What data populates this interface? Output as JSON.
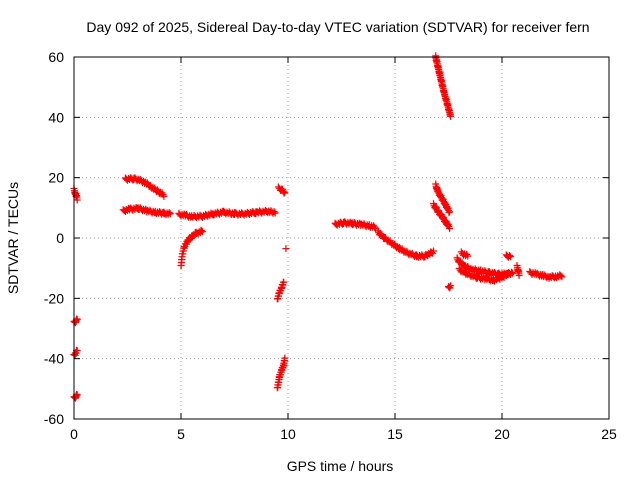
{
  "chart_data": {
    "type": "scatter",
    "title": "Day 092 of 2025, Sidereal Day-to-day VTEC variation (SDTVAR) for receiver fern",
    "xlabel": "GPS time / hours",
    "ylabel": "SDTVAR / TECUs",
    "xlim": [
      0,
      25
    ],
    "ylim": [
      -60,
      60
    ],
    "xticks": [
      0,
      5,
      10,
      15,
      20,
      25
    ],
    "yticks": [
      -60,
      -40,
      -20,
      0,
      20,
      40,
      60
    ],
    "xtick_labels": [
      "0",
      "5",
      "10",
      "15",
      "20",
      "25"
    ],
    "ytick_labels": [
      "-60",
      "-40",
      "-20",
      "0",
      "20",
      "40",
      "60"
    ],
    "grid": true,
    "marker": "+",
    "color": "#ff0000",
    "series": [
      {
        "name": "fern",
        "segments": [
          {
            "x": [
              0.0,
              0.1,
              0.15
            ],
            "y": [
              16,
              14,
              13
            ]
          },
          {
            "x": [
              0.0,
              0.1,
              0.15
            ],
            "y": [
              -28,
              -27.5,
              -27
            ]
          },
          {
            "x": [
              0.0,
              0.1,
              0.15
            ],
            "y": [
              -39,
              -38,
              -37
            ]
          },
          {
            "x": [
              0.0,
              0.1,
              0.15
            ],
            "y": [
              -53,
              -52.5,
              -52
            ]
          },
          {
            "x": [
              2.4,
              2.8,
              3.0,
              3.3,
              3.6,
              3.9,
              4.2
            ],
            "y": [
              19.5,
              19.6,
              19.3,
              18.5,
              17.0,
              15.5,
              14.2
            ]
          },
          {
            "x": [
              2.3,
              2.6,
              3.0,
              3.4,
              3.8,
              4.2,
              4.5
            ],
            "y": [
              9.0,
              9.5,
              9.8,
              9.0,
              8.5,
              8.2,
              8.0
            ]
          },
          {
            "x": [
              5.0,
              5.05,
              5.15,
              5.3,
              5.5,
              5.7,
              5.9,
              6.0
            ],
            "y": [
              -9.5,
              -6.0,
              -3.0,
              -1.0,
              0.5,
              1.5,
              2.0,
              2.5
            ]
          },
          {
            "x": [
              4.9,
              5.2,
              5.5,
              6.0,
              6.5,
              7.0,
              7.5,
              8.0,
              8.5,
              9.0,
              9.4
            ],
            "y": [
              7.8,
              7.5,
              7.0,
              7.2,
              8.0,
              8.5,
              8.0,
              8.0,
              8.5,
              8.8,
              8.5
            ]
          },
          {
            "x": [
              9.55,
              9.7,
              9.85
            ],
            "y": [
              16.5,
              16.0,
              15.0
            ]
          },
          {
            "x": [
              9.5,
              9.6,
              9.7,
              9.8
            ],
            "y": [
              -20.5,
              -18.0,
              -16.5,
              -14.5
            ]
          },
          {
            "x": [
              9.5,
              9.6,
              9.7,
              9.8,
              9.85
            ],
            "y": [
              -50.0,
              -46.0,
              -44.0,
              -42.0,
              -40.0
            ]
          },
          {
            "x": [
              9.9
            ],
            "y": [
              -3.5
            ]
          },
          {
            "x": [
              12.2,
              12.6,
              13.0,
              13.4,
              13.8,
              14.1
            ],
            "y": [
              4.5,
              5.0,
              4.8,
              4.5,
              4.0,
              3.5
            ]
          },
          {
            "x": [
              14.2,
              14.5,
              14.9,
              15.2,
              15.6,
              16.0,
              16.4,
              16.8
            ],
            "y": [
              2.0,
              0.0,
              -2.0,
              -3.5,
              -5.0,
              -6.0,
              -6.0,
              -4.5
            ]
          },
          {
            "x": [
              16.9,
              17.1,
              17.3,
              17.5,
              17.6
            ],
            "y": [
              60.0,
              54.0,
              48.0,
              43.0,
              40.5
            ]
          },
          {
            "x": [
              16.9,
              17.0,
              17.2,
              17.4,
              17.55
            ],
            "y": [
              17.5,
              15.5,
              13.0,
              10.5,
              8.5
            ]
          },
          {
            "x": [
              16.8,
              17.0,
              17.2,
              17.4,
              17.55
            ],
            "y": [
              11.0,
              9.0,
              7.0,
              5.0,
              3.5
            ]
          },
          {
            "x": [
              17.5,
              17.6
            ],
            "y": [
              -16.5,
              -16.0
            ]
          },
          {
            "x": [
              17.9,
              18.1,
              18.3,
              18.6,
              19.0,
              19.4,
              19.8,
              20.2,
              20.5
            ],
            "y": [
              -7.0,
              -8.5,
              -9.5,
              -10.5,
              -11.0,
              -11.5,
              -12.0,
              -12.0,
              -11.5
            ]
          },
          {
            "x": [
              18.0,
              18.4,
              18.8,
              19.2,
              19.6,
              20.0,
              20.3
            ],
            "y": [
              -10.5,
              -12.0,
              -13.0,
              -13.5,
              -14.0,
              -13.0,
              -12.0
            ]
          },
          {
            "x": [
              18.1,
              18.4
            ],
            "y": [
              -5.0,
              -6.0
            ]
          },
          {
            "x": [
              20.2,
              20.4
            ],
            "y": [
              -6.0,
              -6.0
            ]
          },
          {
            "x": [
              20.7,
              20.8
            ],
            "y": [
              -9.5,
              -12.0
            ]
          },
          {
            "x": [
              21.3,
              21.6,
              21.9,
              22.2,
              22.5,
              22.8
            ],
            "y": [
              -11.5,
              -12.0,
              -12.5,
              -13.0,
              -12.8,
              -12.5
            ]
          }
        ]
      }
    ]
  }
}
